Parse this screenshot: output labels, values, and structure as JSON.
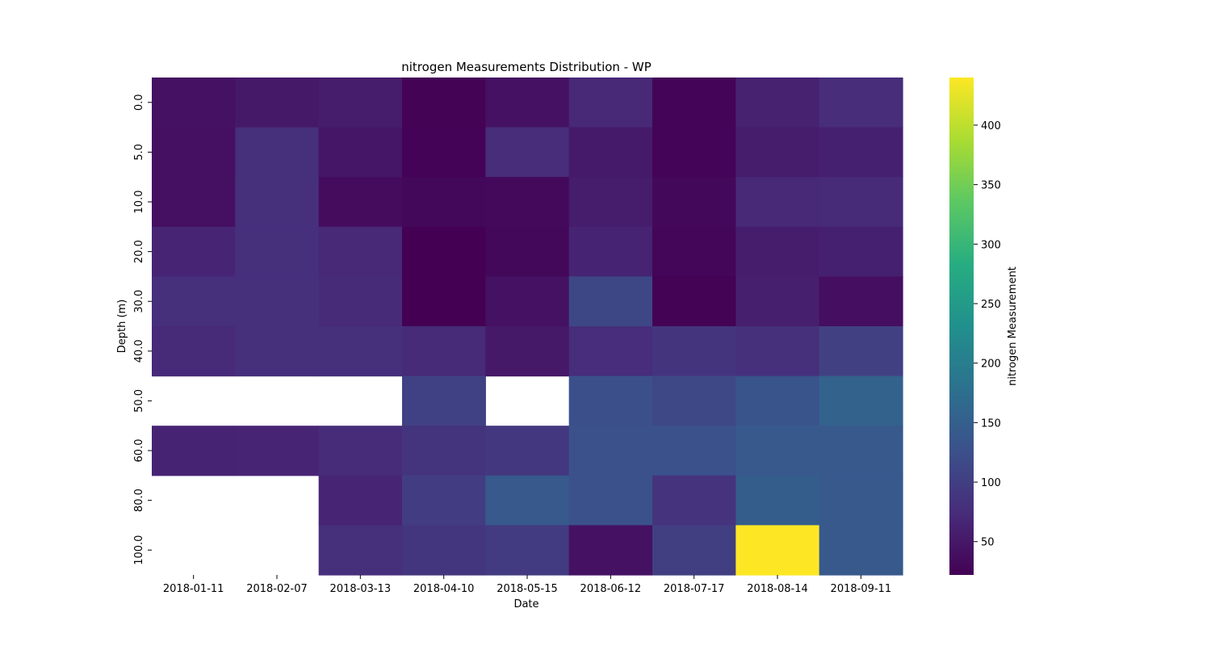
{
  "chart_data": {
    "type": "heatmap",
    "title": "nitrogen Measurements Distribution - WP",
    "xlabel": "Date",
    "ylabel": "Depth (m)",
    "x_categories": [
      "2018-01-11",
      "2018-02-07",
      "2018-03-13",
      "2018-04-10",
      "2018-05-15",
      "2018-06-12",
      "2018-07-17",
      "2018-08-14",
      "2018-09-11"
    ],
    "y_categories": [
      "0.0",
      "5.0",
      "10.0",
      "20.0",
      "30.0",
      "40.0",
      "50.0",
      "60.0",
      "80.0",
      "100.0"
    ],
    "values": [
      [
        42,
        50,
        55,
        24,
        42,
        70,
        26,
        62,
        75
      ],
      [
        40,
        78,
        48,
        25,
        75,
        52,
        26,
        55,
        60
      ],
      [
        40,
        80,
        35,
        30,
        32,
        55,
        30,
        70,
        72
      ],
      [
        66,
        78,
        70,
        22,
        30,
        65,
        28,
        55,
        60
      ],
      [
        78,
        80,
        73,
        22,
        42,
        112,
        24,
        58,
        38
      ],
      [
        72,
        78,
        78,
        72,
        50,
        76,
        86,
        80,
        102
      ],
      [
        null,
        null,
        null,
        104,
        null,
        125,
        114,
        132,
        155
      ],
      [
        65,
        66,
        74,
        86,
        90,
        126,
        126,
        140,
        140
      ],
      [
        null,
        null,
        66,
        98,
        140,
        126,
        84,
        146,
        140
      ],
      [
        null,
        null,
        80,
        88,
        96,
        42,
        100,
        440,
        140
      ]
    ],
    "colorbar": {
      "label": "nitrogen Measurement",
      "min": 22,
      "max": 440,
      "ticks": [
        50,
        100,
        150,
        200,
        250,
        300,
        350,
        400
      ],
      "colormap": "viridis"
    },
    "grid": false,
    "legend": "none"
  }
}
